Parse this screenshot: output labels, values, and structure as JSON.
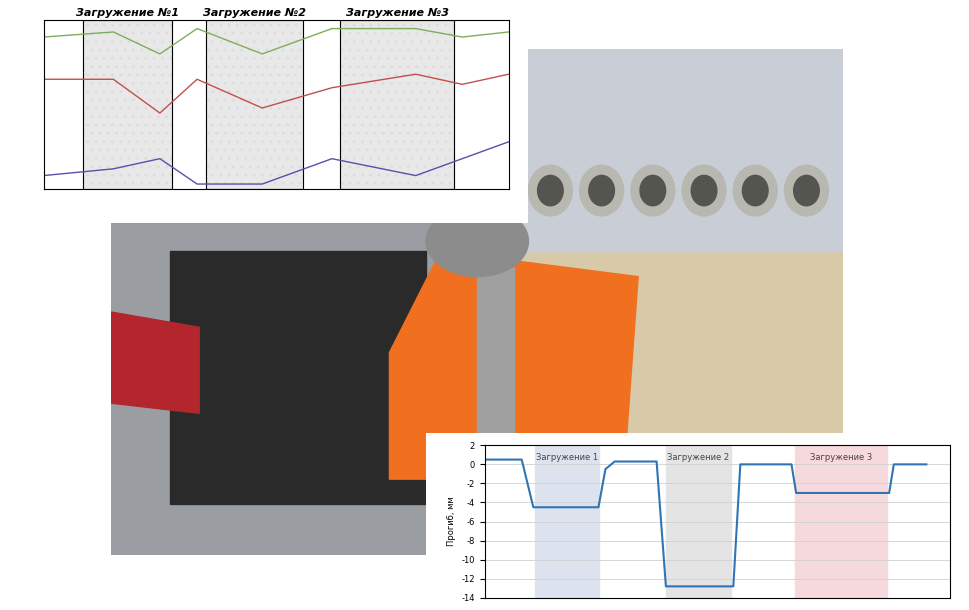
{
  "chart_data": [
    {
      "type": "line",
      "tick_labels": false,
      "legend": false,
      "xlim": [
        0,
        100
      ],
      "ylim": [
        0,
        10
      ],
      "x": [
        0,
        15,
        25,
        33,
        47,
        62,
        80,
        90,
        100
      ],
      "series": [
        {
          "color": "#7fae5a",
          "values": [
            9.0,
            9.3,
            8.0,
            9.5,
            8.0,
            9.5,
            9.5,
            9.0,
            9.3
          ]
        },
        {
          "color": "#c0504d",
          "values": [
            6.5,
            6.5,
            4.5,
            6.5,
            4.8,
            6.0,
            6.8,
            6.2,
            6.8
          ]
        },
        {
          "color": "#5b4fa8",
          "values": [
            0.8,
            1.2,
            1.8,
            0.3,
            0.3,
            1.8,
            0.8,
            1.8,
            2.8
          ]
        }
      ],
      "regions": [
        {
          "label": "Загружение №1",
          "start": 8.5,
          "end": 27.7,
          "color": "#d9d9d9"
        },
        {
          "label": "Загружение №2",
          "start": 35.0,
          "end": 55.7,
          "color": "#d9d9d9"
        },
        {
          "label": "Загружение №3",
          "start": 63.8,
          "end": 88.3,
          "color": "#d9d9d9"
        }
      ]
    },
    {
      "type": "line",
      "ylabel": "Прогиб, мм",
      "tick_labels": "y",
      "grid": true,
      "color": "#2e75b6",
      "xlim": [
        0,
        100
      ],
      "ylim": [
        -14,
        2
      ],
      "yticks": [
        2,
        0,
        -2,
        -4,
        -6,
        -8,
        -10,
        -12,
        -14
      ],
      "x": [
        0,
        8,
        10.5,
        24.5,
        26,
        28,
        37,
        39,
        53.5,
        55,
        66,
        67,
        87,
        88,
        95
      ],
      "values": [
        0.5,
        0.5,
        -4.5,
        -4.5,
        -0.5,
        0.3,
        0.3,
        -12.8,
        -12.8,
        0.0,
        0.0,
        -3.0,
        -3.0,
        0.0,
        0.0
      ],
      "regions": [
        {
          "label": "Загружение 1",
          "start": 10.8,
          "end": 24.6,
          "color": "#dde3ee"
        },
        {
          "label": "Загружение 2",
          "start": 39.0,
          "end": 53.0,
          "color": "#e4e4e4"
        },
        {
          "label": "Загружение 3",
          "start": 66.7,
          "end": 86.5,
          "color": "#f6d9dc"
        }
      ]
    }
  ]
}
